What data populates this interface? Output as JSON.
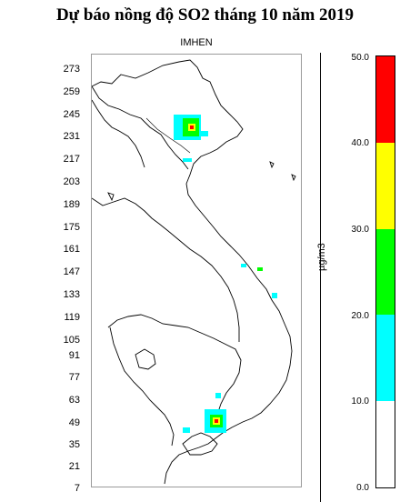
{
  "title": "Dự báo nồng độ SO2 tháng 10 năm 2019",
  "subtitle": "IMHEN",
  "y_axis": {
    "ticks": [
      "273",
      "259",
      "245",
      "231",
      "217",
      "203",
      "189",
      "175",
      "161",
      "147",
      "133",
      "119",
      "105",
      "91",
      "77",
      "63",
      "49",
      "35",
      "21",
      "7"
    ]
  },
  "colorbar": {
    "unit": "µg/m3",
    "ticks": [
      "50.0",
      "40.0",
      "30.0",
      "20.0",
      "10.0",
      "0.0"
    ],
    "bands": [
      {
        "from": 0,
        "to": 10,
        "color": "#ffffff"
      },
      {
        "from": 10,
        "to": 20,
        "color": "#00ffff"
      },
      {
        "from": 20,
        "to": 30,
        "color": "#00ff00"
      },
      {
        "from": 30,
        "to": 40,
        "color": "#ffff00"
      },
      {
        "from": 40,
        "to": 50,
        "color": "#ff0000"
      }
    ]
  },
  "map": {
    "hotspots": [
      {
        "name": "hanoi-hotspot",
        "level": 45
      },
      {
        "name": "hcmc-hotspot",
        "level": 45
      },
      {
        "name": "central-coast-spot",
        "level": 15
      }
    ]
  }
}
